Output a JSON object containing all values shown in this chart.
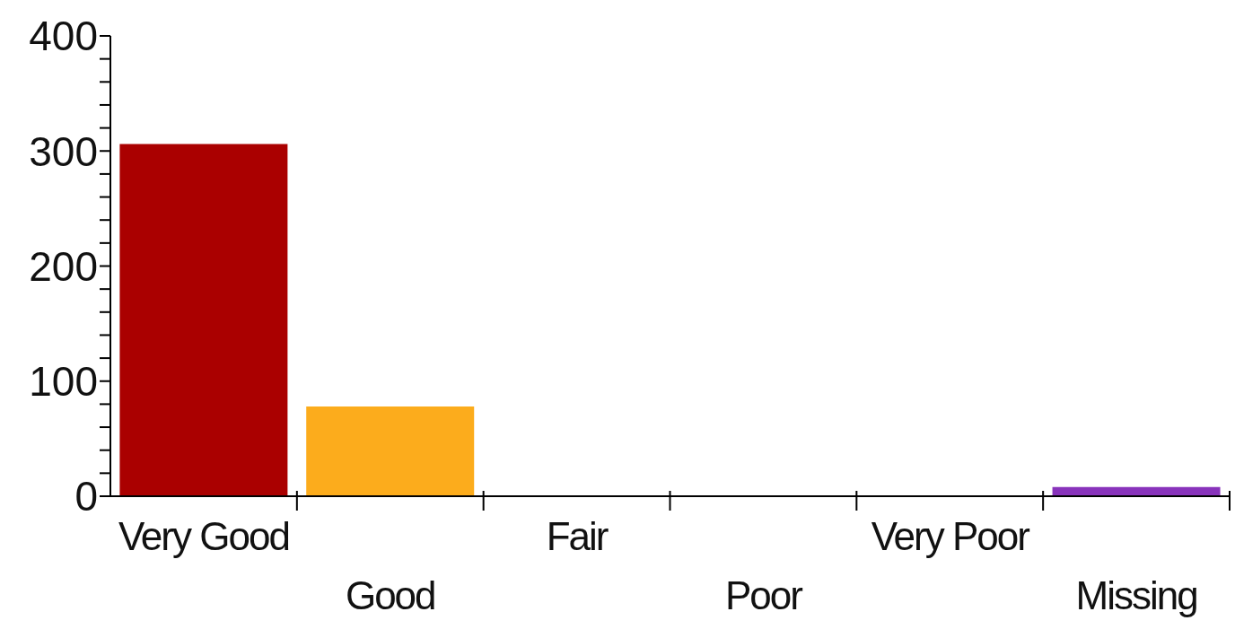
{
  "chart_data": {
    "type": "bar",
    "categories": [
      "Very Good",
      "Good",
      "Fair",
      "Poor",
      "Very Poor",
      "Missing"
    ],
    "values": [
      306,
      78,
      0,
      0,
      0,
      8
    ],
    "colors": [
      "#aa0000",
      "#fcac1c",
      "#3366cc",
      "#33aa55",
      "#22aacc",
      "#8833bb"
    ],
    "ylim": [
      0,
      400
    ],
    "yticks": [
      0,
      {
        "value": 20,
        "label": null
      },
      {
        "value": 40,
        "label": null
      },
      {
        "value": 60,
        "label": null
      },
      {
        "value": 80,
        "label": null
      },
      100,
      {
        "value": 120,
        "label": null
      },
      {
        "value": 140,
        "label": null
      },
      {
        "value": 160,
        "label": null
      },
      {
        "value": 180,
        "label": null
      },
      200,
      {
        "value": 220,
        "label": null
      },
      {
        "value": 240,
        "label": null
      },
      {
        "value": 260,
        "label": null
      },
      {
        "value": 280,
        "label": null
      },
      300,
      {
        "value": 320,
        "label": null
      },
      {
        "value": 340,
        "label": null
      },
      {
        "value": 360,
        "label": null
      },
      {
        "value": 380,
        "label": null
      },
      400
    ],
    "grid": false,
    "legend": false
  }
}
